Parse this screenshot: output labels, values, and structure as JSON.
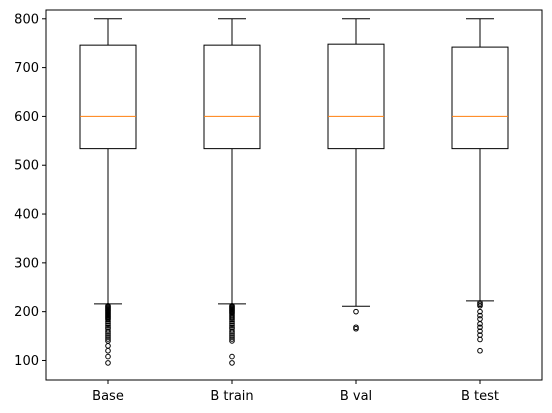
{
  "chart_data": {
    "type": "boxplot",
    "title": "",
    "xlabel": "",
    "ylabel": "",
    "ylim": [
      60,
      818
    ],
    "yticks": [
      100,
      200,
      300,
      400,
      500,
      600,
      700,
      800
    ],
    "ytick_labels": [
      "100",
      "200",
      "300",
      "400",
      "500",
      "600",
      "700",
      "800"
    ],
    "categories": [
      "Base",
      "B train",
      "B val",
      "B test"
    ],
    "grid": false,
    "colors": {
      "box": "#000000",
      "median": "#ff7f0e",
      "outlier": "#000000"
    },
    "boxes": [
      {
        "label": "Base",
        "whisker_low": 216,
        "q1": 534,
        "median": 600,
        "q3": 746,
        "whisker_high": 800,
        "outliers": [
          212,
          210,
          208,
          206,
          204,
          202,
          200,
          198,
          196,
          194,
          192,
          190,
          188,
          186,
          184,
          180,
          176,
          172,
          168,
          165,
          160,
          156,
          152,
          148,
          144,
          140,
          130,
          120,
          108,
          95
        ]
      },
      {
        "label": "B train",
        "whisker_low": 216,
        "q1": 534,
        "median": 600,
        "q3": 746,
        "whisker_high": 800,
        "outliers": [
          212,
          210,
          208,
          206,
          204,
          202,
          200,
          198,
          196,
          193,
          190,
          187,
          184,
          180,
          176,
          172,
          168,
          165,
          160,
          156,
          152,
          148,
          144,
          140,
          108,
          95
        ]
      },
      {
        "label": "B val",
        "whisker_low": 211,
        "q1": 534,
        "median": 600,
        "q3": 748,
        "whisker_high": 800,
        "outliers": [
          200,
          168,
          165
        ]
      },
      {
        "label": "B test",
        "whisker_low": 222,
        "q1": 534,
        "median": 600,
        "q3": 742,
        "whisker_high": 800,
        "outliers": [
          218,
          215,
          212,
          200,
          192,
          185,
          175,
          168,
          160,
          152,
          143,
          120
        ]
      }
    ]
  }
}
